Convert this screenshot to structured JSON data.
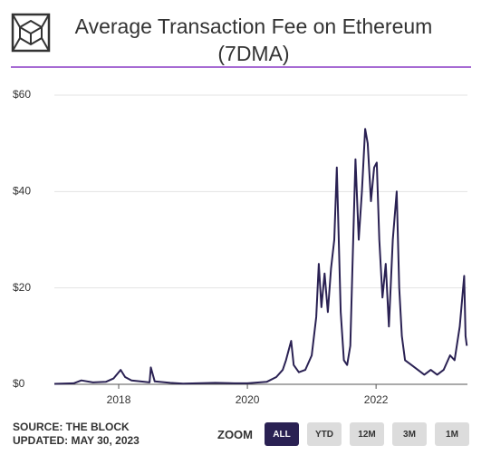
{
  "chart_data": {
    "type": "line",
    "title": "Average Transaction Fee on Ethereum (7DMA)",
    "x": [
      2017.0,
      2017.3,
      2017.42,
      2017.6,
      2017.8,
      2017.92,
      2018.03,
      2018.1,
      2018.2,
      2018.4,
      2018.48,
      2018.5,
      2018.56,
      2018.8,
      2019.0,
      2019.5,
      2019.8,
      2020.0,
      2020.3,
      2020.45,
      2020.55,
      2020.6,
      2020.68,
      2020.72,
      2020.8,
      2020.9,
      2021.0,
      2021.07,
      2021.11,
      2021.15,
      2021.2,
      2021.25,
      2021.3,
      2021.35,
      2021.39,
      2021.45,
      2021.5,
      2021.55,
      2021.6,
      2021.64,
      2021.68,
      2021.73,
      2021.78,
      2021.83,
      2021.87,
      2021.92,
      2021.97,
      2022.01,
      2022.05,
      2022.1,
      2022.15,
      2022.2,
      2022.26,
      2022.32,
      2022.36,
      2022.4,
      2022.45,
      2022.55,
      2022.65,
      2022.75,
      2022.85,
      2022.95,
      2023.05,
      2023.15,
      2023.22,
      2023.3,
      2023.37,
      2023.39,
      2023.41
    ],
    "values": [
      0.1,
      0.2,
      0.8,
      0.4,
      0.5,
      1.2,
      3.0,
      1.5,
      0.8,
      0.5,
      0.4,
      3.5,
      0.6,
      0.3,
      0.15,
      0.3,
      0.2,
      0.2,
      0.5,
      1.5,
      3,
      5,
      9,
      4,
      2.5,
      3,
      6,
      14,
      25,
      16,
      23,
      15,
      24,
      30,
      45,
      15,
      5,
      4,
      8,
      28,
      46.7,
      30,
      40,
      53,
      50,
      38,
      45,
      46,
      30,
      18,
      25,
      12,
      30,
      40,
      20,
      10,
      5,
      4,
      3,
      2,
      3,
      2,
      3,
      6,
      5,
      12,
      22.5,
      10,
      8
    ],
    "color": "#2a2153",
    "xlim": [
      2017.0,
      2023.42
    ],
    "xticks": [
      2018,
      2020,
      2022
    ],
    "ylim": [
      0,
      60
    ],
    "yticks": [
      {
        "value": 0,
        "label": "$0"
      },
      {
        "value": 20,
        "label": "$20"
      },
      {
        "value": 40,
        "label": "$40"
      },
      {
        "value": 60,
        "label": "$60"
      }
    ],
    "grid": true,
    "source": "SOURCE: THE BLOCK",
    "updated": "UPDATED: MAY 30, 2023",
    "zoom": {
      "label": "ZOOM",
      "buttons": [
        "ALL",
        "YTD",
        "12M",
        "3M",
        "1M"
      ],
      "active": 0
    }
  }
}
